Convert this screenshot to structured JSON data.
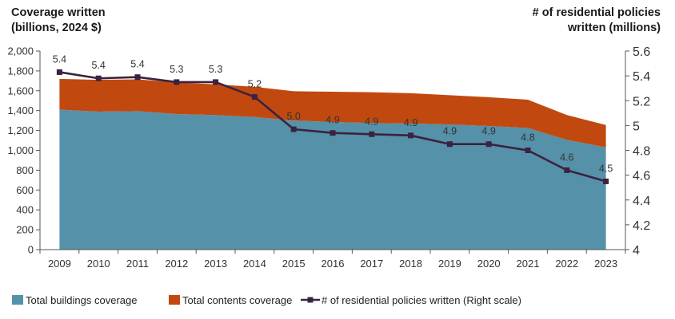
{
  "chart_data": {
    "type": "area",
    "title_left": [
      "Coverage written",
      "(billions, 2024 $)"
    ],
    "title_right": [
      "# of residential policies",
      "written (millions)"
    ],
    "x": [
      "2009",
      "2010",
      "2011",
      "2012",
      "2013",
      "2014",
      "2015",
      "2016",
      "2017",
      "2018",
      "2019",
      "2020",
      "2021",
      "2022",
      "2023"
    ],
    "series": [
      {
        "name": "Total buildings coverage",
        "type": "area",
        "axis": "left",
        "color": "#5591a9",
        "values": [
          1410,
          1390,
          1395,
          1365,
          1355,
          1335,
          1300,
          1285,
          1275,
          1270,
          1260,
          1245,
          1225,
          1105,
          1030
        ]
      },
      {
        "name": "Total contents coverage",
        "type": "area",
        "axis": "left",
        "color": "#c1490f",
        "values": [
          310,
          320,
          320,
          320,
          310,
          305,
          295,
          305,
          310,
          305,
          295,
          290,
          285,
          250,
          225
        ]
      },
      {
        "name": "# of residential policies written (Right scale)",
        "type": "line",
        "axis": "right",
        "color": "#3b2240",
        "values": [
          5.43,
          5.38,
          5.39,
          5.35,
          5.35,
          5.23,
          4.97,
          4.94,
          4.93,
          4.92,
          4.85,
          4.85,
          4.8,
          4.64,
          4.55
        ],
        "data_labels": [
          "5.4",
          "5.4",
          "5.4",
          "5.3",
          "5.3",
          "5.2",
          "5.0",
          "4.9",
          "4.9",
          "4.9",
          "4.9",
          "4.9",
          "4.8",
          "4.6",
          "4.5"
        ]
      }
    ],
    "y_left": {
      "ylim": [
        0,
        2000
      ],
      "ticks": [
        0,
        200,
        400,
        600,
        800,
        1000,
        1200,
        1400,
        1600,
        1800,
        2000
      ],
      "tick_labels": [
        "0",
        "200",
        "400",
        "600",
        "800",
        "1,000",
        "1,200",
        "1,400",
        "1,600",
        "1,800",
        "2,000"
      ]
    },
    "y_right": {
      "ylim": [
        4,
        5.6
      ],
      "ticks": [
        4,
        4.2,
        4.4,
        4.6,
        4.8,
        5,
        5.2,
        5.4,
        5.6
      ],
      "tick_labels": [
        "4",
        "4.2",
        "4.4",
        "4.6",
        "4.8",
        "5",
        "5.2",
        "5.4",
        "5.6"
      ]
    },
    "grid": false,
    "legend_position": "bottom"
  }
}
